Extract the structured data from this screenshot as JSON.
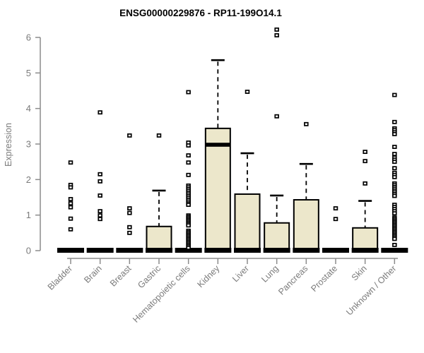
{
  "title": "ENSG00000229876 - RP11-199O14.1",
  "chart_data": {
    "type": "boxplot",
    "title": "ENSG00000229876 - RP11-199O14.1",
    "ylabel": "Expression",
    "xlabel": "",
    "ylim": [
      0,
      6
    ],
    "ytick_labels": [
      "0",
      "1",
      "2",
      "3",
      "4",
      "5",
      "6"
    ],
    "grid": false,
    "legend": "none",
    "box_fill_color": "#ECE7CB",
    "box_stroke_color": "#000000",
    "axis_color": "#8C8C8C",
    "label_color": "#7B7B7B",
    "categories": [
      "Bladder",
      "Brain",
      "Breast",
      "Gastric",
      "Hematopoietic cells",
      "Kidney",
      "Liver",
      "Lung",
      "Pancreas",
      "Prostate",
      "Skin",
      "Unknown / Other"
    ],
    "series": [
      {
        "name": "Bladder",
        "median": 0,
        "q1": 0,
        "q3": 0,
        "whisker_low": 0,
        "whisker_high": 0,
        "outliers": [
          2.48,
          1.85,
          1.78,
          1.45,
          1.33,
          1.22,
          0.9,
          0.6
        ]
      },
      {
        "name": "Brain",
        "median": 0,
        "q1": 0,
        "q3": 0,
        "whisker_low": 0,
        "whisker_high": 0,
        "outliers": [
          3.89,
          2.15,
          1.95,
          1.55,
          1.11,
          0.99,
          0.89
        ]
      },
      {
        "name": "Breast",
        "median": 0,
        "q1": 0,
        "q3": 0,
        "whisker_low": 0,
        "whisker_high": 0,
        "outliers": [
          3.24,
          1.19,
          1.06,
          0.66,
          0.5
        ]
      },
      {
        "name": "Gastric",
        "median": 0,
        "q1": 0,
        "q3": 0.68,
        "whisker_low": 0,
        "whisker_high": 1.69,
        "outliers": [
          3.24
        ]
      },
      {
        "name": "Hematopoietic cells",
        "median": 0,
        "q1": 0,
        "q3": 0,
        "whisker_low": 0,
        "whisker_high": 0,
        "outliers": [
          4.46,
          3.04,
          2.96,
          2.68,
          2.48,
          2.13,
          1.83,
          1.78,
          1.73,
          1.68,
          1.63,
          1.58,
          1.53,
          1.48,
          1.43,
          1.38,
          1.33,
          1.29,
          0.99,
          0.95,
          0.91,
          0.87,
          0.83,
          0.79,
          0.75,
          0.71,
          0.56,
          0.52,
          0.48,
          0.44,
          0.4,
          0.36,
          0.32,
          0.28,
          0.24,
          0.2,
          0.16,
          0.12,
          0.08
        ]
      },
      {
        "name": "Kidney",
        "median": 2.98,
        "q1": 0,
        "q3": 3.44,
        "whisker_low": 0,
        "whisker_high": 5.36,
        "outliers": []
      },
      {
        "name": "Liver",
        "median": 0,
        "q1": 0,
        "q3": 1.59,
        "whisker_low": 0,
        "whisker_high": 2.74,
        "outliers": [
          4.47
        ]
      },
      {
        "name": "Lung",
        "median": 0,
        "q1": 0,
        "q3": 0.78,
        "whisker_low": 0,
        "whisker_high": 1.55,
        "outliers": [
          6.22,
          6.06,
          3.78
        ]
      },
      {
        "name": "Pancreas",
        "median": 0,
        "q1": 0,
        "q3": 1.43,
        "whisker_low": 0,
        "whisker_high": 2.44,
        "outliers": [
          3.56
        ]
      },
      {
        "name": "Prostate",
        "median": 0,
        "q1": 0,
        "q3": 0,
        "whisker_low": 0,
        "whisker_high": 0,
        "outliers": [
          1.19,
          0.89
        ]
      },
      {
        "name": "Skin",
        "median": 0,
        "q1": 0,
        "q3": 0.64,
        "whisker_low": 0,
        "whisker_high": 1.4,
        "outliers": [
          2.78,
          2.52,
          1.89
        ]
      },
      {
        "name": "Unknown / Other",
        "median": 0,
        "q1": 0,
        "q3": 0,
        "whisker_low": 0,
        "whisker_high": 0,
        "outliers": [
          4.38,
          3.62,
          3.44,
          3.39,
          3.33,
          3.28,
          2.92,
          2.72,
          2.62,
          2.56,
          2.5,
          2.32,
          2.19,
          2.13,
          2.07,
          1.89,
          1.84,
          1.79,
          1.74,
          1.69,
          1.64,
          1.59,
          1.54,
          1.29,
          1.23,
          1.17,
          1.11,
          1.05,
          0.93,
          0.89,
          0.85,
          0.81,
          0.77,
          0.73,
          0.69,
          0.65,
          0.61,
          0.57,
          0.53,
          0.49,
          0.45,
          0.41,
          0.37,
          0.33,
          0.16
        ]
      }
    ]
  }
}
